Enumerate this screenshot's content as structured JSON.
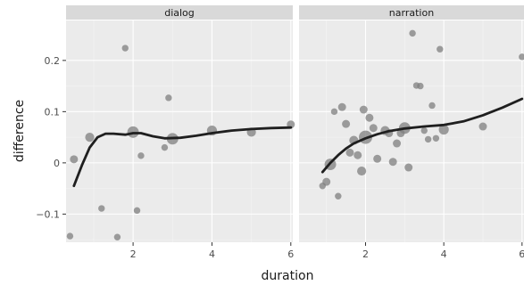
{
  "chart_data": {
    "type": "scatter",
    "xlabel": "duration",
    "ylabel": "difference",
    "xlim": [
      0.3,
      6.05
    ],
    "ylim": [
      -0.155,
      0.278
    ],
    "x_ticks": [
      2,
      4,
      6
    ],
    "x_tick_labels": [
      "2",
      "4",
      "6"
    ],
    "y_ticks": [
      -0.1,
      0,
      0.1,
      0.2
    ],
    "y_tick_labels": [
      "−0.1",
      "0",
      "0.1",
      "0.2"
    ],
    "grid": true,
    "point_color": "#7f7f7f",
    "line_color": "#1f1f1f",
    "panel_bg": "#ebebeb",
    "strip_bg": "#d9d9d9",
    "facets": [
      {
        "label": "dialog",
        "points": [
          {
            "x": 0.4,
            "y": -0.143,
            "size": 1
          },
          {
            "x": 0.5,
            "y": 0.007,
            "size": 2
          },
          {
            "x": 0.9,
            "y": 0.05,
            "size": 3
          },
          {
            "x": 1.2,
            "y": -0.089,
            "size": 1
          },
          {
            "x": 1.6,
            "y": -0.145,
            "size": 1
          },
          {
            "x": 1.8,
            "y": 0.224,
            "size": 1
          },
          {
            "x": 2.0,
            "y": 0.06,
            "size": 6
          },
          {
            "x": 2.1,
            "y": -0.093,
            "size": 1
          },
          {
            "x": 2.2,
            "y": 0.014,
            "size": 1
          },
          {
            "x": 2.8,
            "y": 0.03,
            "size": 1
          },
          {
            "x": 2.9,
            "y": 0.127,
            "size": 1
          },
          {
            "x": 3.0,
            "y": 0.047,
            "size": 6
          },
          {
            "x": 4.0,
            "y": 0.063,
            "size": 4
          },
          {
            "x": 5.0,
            "y": 0.06,
            "size": 3
          },
          {
            "x": 6.0,
            "y": 0.075,
            "size": 2
          }
        ],
        "smooth": [
          {
            "x": 0.5,
            "y": -0.045
          },
          {
            "x": 0.7,
            "y": -0.005
          },
          {
            "x": 0.9,
            "y": 0.03
          },
          {
            "x": 1.1,
            "y": 0.05
          },
          {
            "x": 1.3,
            "y": 0.057
          },
          {
            "x": 1.5,
            "y": 0.057
          },
          {
            "x": 1.8,
            "y": 0.055
          },
          {
            "x": 2.0,
            "y": 0.058
          },
          {
            "x": 2.2,
            "y": 0.058
          },
          {
            "x": 2.5,
            "y": 0.052
          },
          {
            "x": 2.8,
            "y": 0.048
          },
          {
            "x": 3.2,
            "y": 0.049
          },
          {
            "x": 3.6,
            "y": 0.053
          },
          {
            "x": 4.0,
            "y": 0.058
          },
          {
            "x": 4.5,
            "y": 0.063
          },
          {
            "x": 5.0,
            "y": 0.066
          },
          {
            "x": 5.5,
            "y": 0.068
          },
          {
            "x": 6.0,
            "y": 0.069
          }
        ]
      },
      {
        "label": "narration",
        "points": [
          {
            "x": 0.9,
            "y": -0.045,
            "size": 1
          },
          {
            "x": 1.0,
            "y": -0.037,
            "size": 2
          },
          {
            "x": 1.1,
            "y": -0.003,
            "size": 6
          },
          {
            "x": 1.2,
            "y": 0.1,
            "size": 1
          },
          {
            "x": 1.3,
            "y": -0.065,
            "size": 1
          },
          {
            "x": 1.4,
            "y": 0.109,
            "size": 2
          },
          {
            "x": 1.5,
            "y": 0.076,
            "size": 2
          },
          {
            "x": 1.6,
            "y": 0.02,
            "size": 2
          },
          {
            "x": 1.7,
            "y": 0.044,
            "size": 3
          },
          {
            "x": 1.8,
            "y": 0.015,
            "size": 2
          },
          {
            "x": 1.9,
            "y": -0.016,
            "size": 3
          },
          {
            "x": 1.95,
            "y": 0.104,
            "size": 2
          },
          {
            "x": 2.0,
            "y": 0.05,
            "size": 9
          },
          {
            "x": 2.1,
            "y": 0.088,
            "size": 2
          },
          {
            "x": 2.2,
            "y": 0.068,
            "size": 2
          },
          {
            "x": 2.3,
            "y": 0.008,
            "size": 2
          },
          {
            "x": 2.5,
            "y": 0.063,
            "size": 3
          },
          {
            "x": 2.6,
            "y": 0.058,
            "size": 2
          },
          {
            "x": 2.7,
            "y": 0.002,
            "size": 2
          },
          {
            "x": 2.8,
            "y": 0.038,
            "size": 2
          },
          {
            "x": 2.9,
            "y": 0.058,
            "size": 2
          },
          {
            "x": 3.0,
            "y": 0.068,
            "size": 6
          },
          {
            "x": 3.1,
            "y": -0.009,
            "size": 2
          },
          {
            "x": 3.2,
            "y": 0.253,
            "size": 1
          },
          {
            "x": 3.3,
            "y": 0.151,
            "size": 1
          },
          {
            "x": 3.4,
            "y": 0.15,
            "size": 1
          },
          {
            "x": 3.5,
            "y": 0.063,
            "size": 1
          },
          {
            "x": 3.6,
            "y": 0.046,
            "size": 1
          },
          {
            "x": 3.7,
            "y": 0.112,
            "size": 1
          },
          {
            "x": 3.8,
            "y": 0.048,
            "size": 1
          },
          {
            "x": 3.9,
            "y": 0.222,
            "size": 1
          },
          {
            "x": 4.0,
            "y": 0.065,
            "size": 4
          },
          {
            "x": 5.0,
            "y": 0.071,
            "size": 2
          },
          {
            "x": 6.0,
            "y": 0.207,
            "size": 1
          }
        ],
        "smooth": [
          {
            "x": 0.9,
            "y": -0.018
          },
          {
            "x": 1.1,
            "y": 0.0
          },
          {
            "x": 1.3,
            "y": 0.015
          },
          {
            "x": 1.5,
            "y": 0.028
          },
          {
            "x": 1.7,
            "y": 0.038
          },
          {
            "x": 2.0,
            "y": 0.048
          },
          {
            "x": 2.3,
            "y": 0.056
          },
          {
            "x": 2.6,
            "y": 0.062
          },
          {
            "x": 3.0,
            "y": 0.067
          },
          {
            "x": 3.5,
            "y": 0.071
          },
          {
            "x": 4.0,
            "y": 0.074
          },
          {
            "x": 4.5,
            "y": 0.081
          },
          {
            "x": 5.0,
            "y": 0.093
          },
          {
            "x": 5.5,
            "y": 0.108
          },
          {
            "x": 6.0,
            "y": 0.125
          }
        ]
      }
    ]
  }
}
